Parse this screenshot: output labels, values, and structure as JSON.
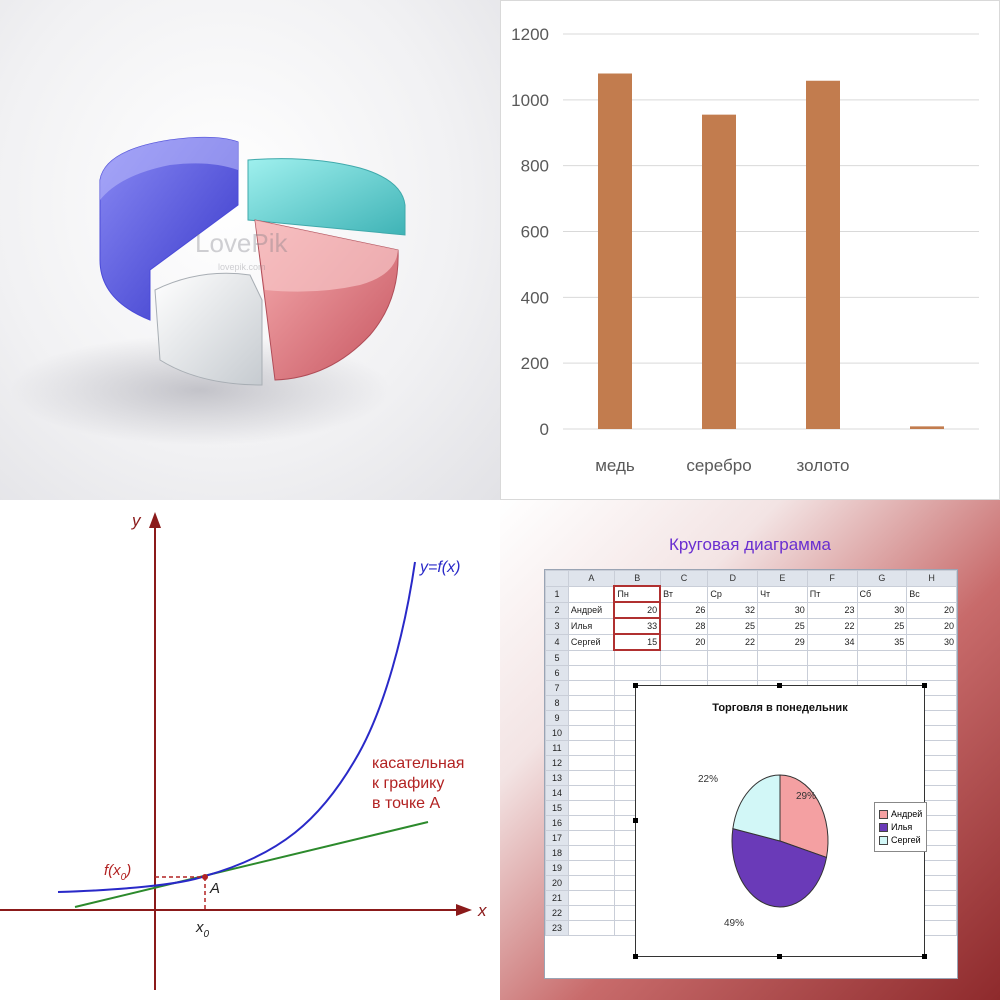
{
  "colors": {
    "bar": "#c27c4e",
    "curve": "#2929c8",
    "tangent": "#2c8a2c",
    "axis": "#8b1a1a",
    "annot": "#b22222",
    "pie_slices": [
      "#f4a0a2",
      "#6a3ab8",
      "#d2f7f7"
    ]
  },
  "watermark": {
    "brand": "LovePik",
    "sub": "lovepik.com"
  },
  "chart_data": [
    {
      "type": "pie",
      "style": "3d-exploded",
      "values": [],
      "slice_colors": [
        "#5a5ae0",
        "#5ac6c6",
        "#e08286",
        "#e6e9ec"
      ]
    },
    {
      "type": "bar",
      "categories": [
        "медь",
        "серебро",
        "золото",
        ""
      ],
      "values": [
        1080,
        955,
        1058,
        8
      ],
      "ylim": [
        0,
        1200
      ],
      "yticks": [
        0,
        200,
        400,
        600,
        800,
        1000,
        1200
      ],
      "grid": true
    },
    {
      "type": "line",
      "title": "",
      "xlabel": "x",
      "ylabel": "y",
      "series": [
        {
          "name": "y=f(x)",
          "kind": "curve"
        },
        {
          "name": "касательная к графику в точке A",
          "kind": "tangent"
        }
      ],
      "annotations": {
        "point": "A",
        "x0": "x",
        "x0_sub": "0",
        "fx0": "f(x",
        "fx0_sub": "0",
        "fx0_close": ")",
        "curve_label": "y=f(x)",
        "tangent_label": [
          "касательная",
          "к графику",
          "в точке A"
        ]
      }
    },
    {
      "type": "pie",
      "title": "Торговля в понедельник",
      "categories": [
        "Андрей",
        "Илья",
        "Сергей"
      ],
      "values": [
        29,
        49,
        22
      ],
      "labels": [
        "29%",
        "49%",
        "22%"
      ],
      "legend_position": "right"
    }
  ],
  "spreadsheet": {
    "heading": "Круговая диаграмма",
    "columns": [
      "A",
      "B",
      "C",
      "D",
      "E",
      "F",
      "G",
      "H"
    ],
    "row_numbers": [
      "1",
      "2",
      "3",
      "4",
      "5",
      "6",
      "7",
      "8",
      "9",
      "10",
      "11",
      "12",
      "13",
      "14",
      "15",
      "16",
      "17",
      "18",
      "19",
      "20",
      "21",
      "22",
      "23"
    ],
    "header_row": [
      "",
      "Пн",
      "Вт",
      "Ср",
      "Чт",
      "Пт",
      "Сб",
      "Вс"
    ],
    "rows": [
      [
        "Андрей",
        "20",
        "26",
        "32",
        "30",
        "23",
        "30",
        "20"
      ],
      [
        "Илья",
        "33",
        "28",
        "25",
        "25",
        "22",
        "25",
        "20"
      ],
      [
        "Сергей",
        "15",
        "20",
        "22",
        "29",
        "34",
        "35",
        "30"
      ]
    ]
  }
}
